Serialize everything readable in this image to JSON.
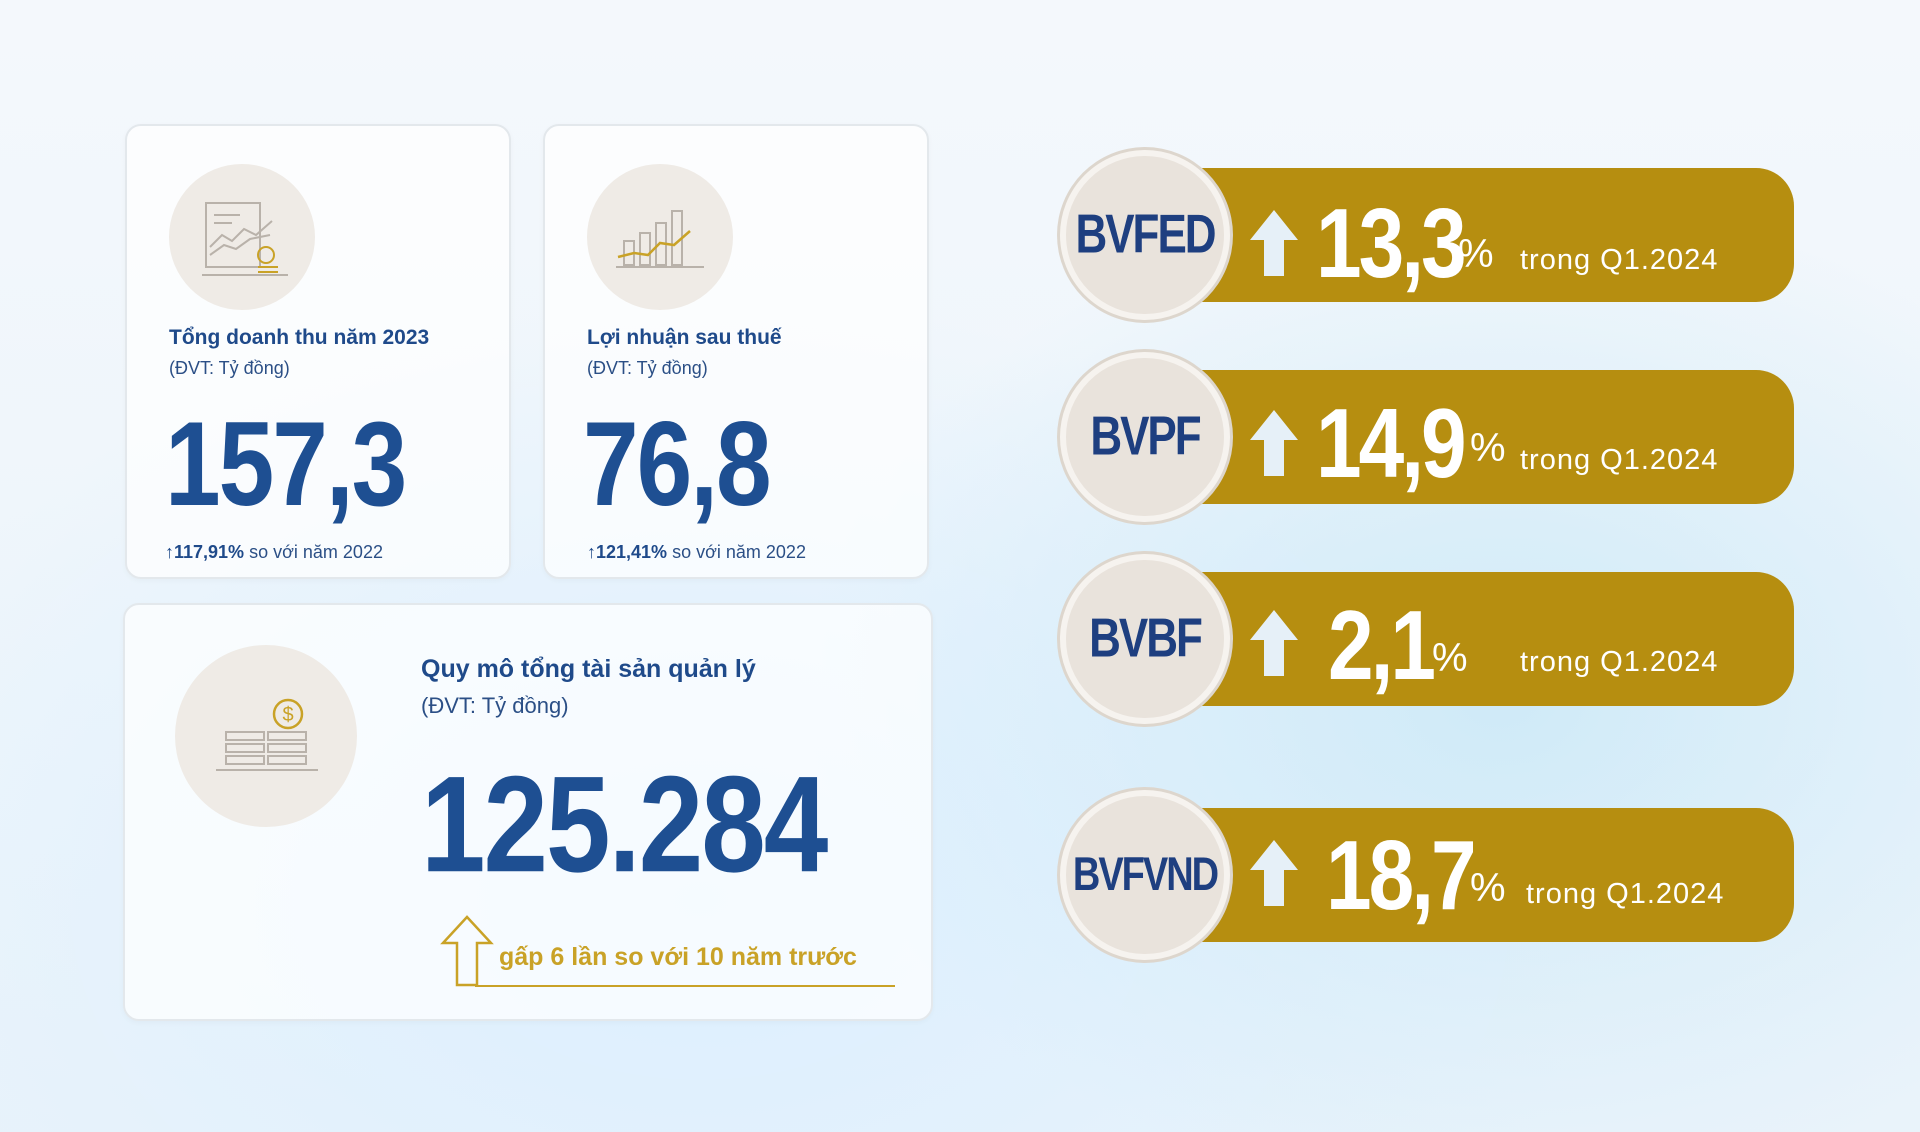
{
  "revenue": {
    "title": "Tổng doanh thu năm 2023",
    "unit": "(ĐVT: Tỷ đồng)",
    "value": "157,3",
    "compare_value": "117,91%",
    "compare_text": "so với năm 2022",
    "icon": "revenue-document-chart-icon"
  },
  "profit": {
    "title": "Lợi nhuận sau thuế",
    "unit": "(ĐVT: Tỷ đồng)",
    "value": "76,8",
    "compare_value": "121,41%",
    "compare_text": "so với năm 2022",
    "icon": "bar-chart-growth-icon"
  },
  "assets": {
    "title": "Quy mô tổng tài sản quản lý",
    "unit": "(ĐVT: Tỷ đồng)",
    "value": "125.284",
    "growth_text": "gấp 6 lần so với 10 năm trước",
    "icon": "coin-stack-dollar-icon"
  },
  "funds": [
    {
      "name": "BVFED",
      "value": "13,3",
      "pct": "%",
      "period": "trong Q1.2024"
    },
    {
      "name": "BVPF",
      "value": "14,9",
      "pct": "%",
      "period": "trong Q1.2024"
    },
    {
      "name": "BVBF",
      "value": "2,1",
      "pct": "%",
      "period": "trong Q1.2024"
    },
    {
      "name": "BVFVND",
      "value": "18,7",
      "pct": "%",
      "period": "trong Q1.2024"
    }
  ],
  "colors": {
    "navy": "#1e4f92",
    "gold": "#b68e10",
    "badge": "#e9e3dc"
  }
}
